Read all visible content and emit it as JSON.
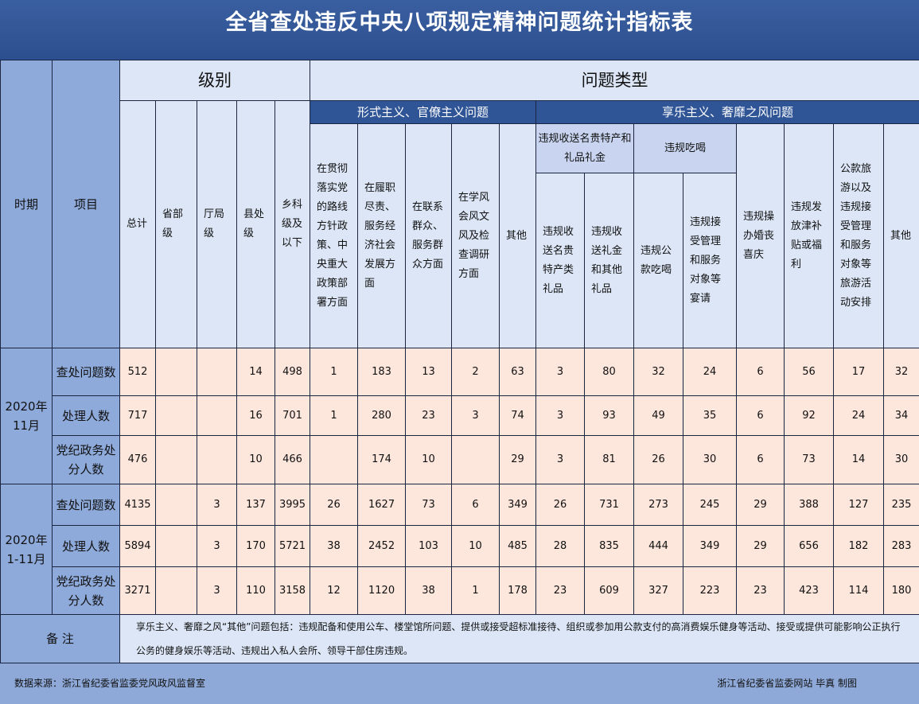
{
  "title": "全省查处违反中央八项规定精神问题统计指标表",
  "headers": {
    "period": "时期",
    "item": "项目",
    "level": "级别",
    "problem_type": "问题类型",
    "formalism": "形式主义、官僚主义问题",
    "hedonism": "享乐主义、奢靡之风问题",
    "gifts_group": "违规收送名贵特产和礼品礼金",
    "dining_group": "违规吃喝",
    "level_cols": [
      "总计",
      "省部级",
      "厅局级",
      "县处级",
      "乡科级及以下"
    ],
    "formalism_cols": [
      "在贯彻落实党的路线方针政策、中央重大政策部署方面",
      "在履职尽责、服务经济社会发展方面",
      "在联系群众、服务群众方面",
      "在学风会风文风及检查调研方面",
      "其他"
    ],
    "hedonism_cols": [
      "违规收送名贵特产类礼品",
      "违规收送礼金和其他礼品",
      "违规公款吃喝",
      "违规接受管理和服务对象等宴请",
      "违规操办婚丧喜庆",
      "违规发放津补贴或福利",
      "公款旅游以及违规接受管理和服务对象等旅游活动安排",
      "其他"
    ]
  },
  "periods": [
    {
      "label": "2020年11月",
      "rows": [
        {
          "item": "查处问题数",
          "values": [
            "512",
            "",
            "",
            "14",
            "498",
            "1",
            "183",
            "13",
            "2",
            "63",
            "3",
            "80",
            "32",
            "24",
            "6",
            "56",
            "17",
            "32"
          ]
        },
        {
          "item": "处理人数",
          "values": [
            "717",
            "",
            "",
            "16",
            "701",
            "1",
            "280",
            "23",
            "3",
            "74",
            "3",
            "93",
            "49",
            "35",
            "6",
            "92",
            "24",
            "34"
          ]
        },
        {
          "item": "党纪政务处分人数",
          "values": [
            "476",
            "",
            "",
            "10",
            "466",
            "",
            "174",
            "10",
            "",
            "29",
            "3",
            "81",
            "26",
            "30",
            "6",
            "73",
            "14",
            "30"
          ]
        }
      ]
    },
    {
      "label": "2020年1-11月",
      "rows": [
        {
          "item": "查处问题数",
          "values": [
            "4135",
            "",
            "3",
            "137",
            "3995",
            "26",
            "1627",
            "73",
            "6",
            "349",
            "26",
            "731",
            "273",
            "245",
            "29",
            "388",
            "127",
            "235"
          ]
        },
        {
          "item": "处理人数",
          "values": [
            "5894",
            "",
            "3",
            "170",
            "5721",
            "38",
            "2452",
            "103",
            "10",
            "485",
            "28",
            "835",
            "444",
            "349",
            "29",
            "656",
            "182",
            "283"
          ]
        },
        {
          "item": "党纪政务处分人数",
          "values": [
            "3271",
            "",
            "3",
            "110",
            "3158",
            "12",
            "1120",
            "38",
            "1",
            "178",
            "23",
            "609",
            "327",
            "223",
            "23",
            "423",
            "114",
            "180"
          ]
        }
      ]
    }
  ],
  "remark": {
    "label": "备 注",
    "text": "享乐主义、奢靡之风“其他”问题包括：违规配备和使用公车、楼堂馆所问题、提供或接受超标准接待、组织或参加用公款支付的高消费娱乐健身等活动、接受或提供可能影响公正执行公务的健身娱乐等活动、违规出入私人会所、领导干部住房违规。"
  },
  "footer": {
    "source": "数据来源：浙江省纪委省监委党风政风监督室",
    "credit": "浙江省纪委省监委网站 毕真 制图"
  }
}
